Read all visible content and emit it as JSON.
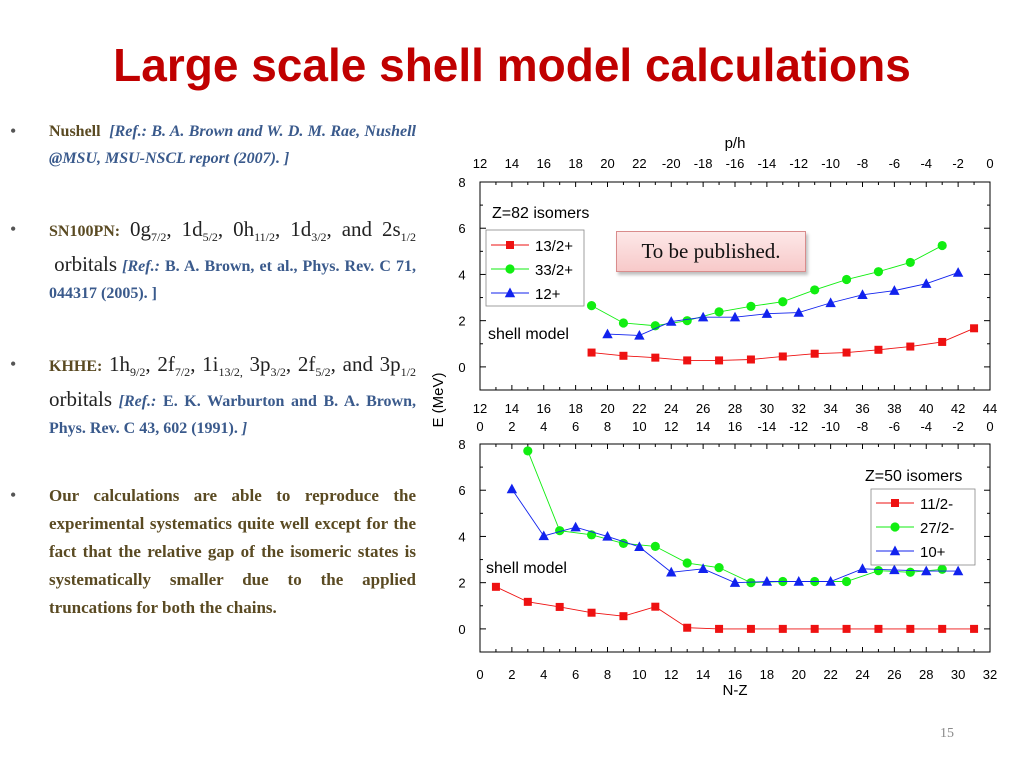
{
  "title": "Large scale shell model calculations",
  "badge": "To be published.",
  "slide_number": "15",
  "bullets": [
    {
      "label": "Nushell",
      "ref": "[Ref.: B. A. Brown and W. D. M. Rae, Nushell @MSU, MSU-NSCL report (2007). ]"
    },
    {
      "label": "SN100PN:",
      "orbitals": [
        {
          "n": "0g",
          "j": "7/2"
        },
        {
          "n": "1d",
          "j": "5/2"
        },
        {
          "n": "0h",
          "j": "11/2"
        },
        {
          "n": "1d",
          "j": "3/2"
        },
        {
          "n": "2s",
          "j": "1/2"
        }
      ],
      "conj": "and",
      "suffix": "orbitals",
      "ref_open": "[Ref.:",
      "ref_body": "B. A. Brown, et al., Phys. Rev. C 71, 044317 (2005). ]"
    },
    {
      "label": "KHHE:",
      "orbitals": [
        {
          "n": "1h",
          "j": "9/2"
        },
        {
          "n": "2f",
          "j": "7/2"
        },
        {
          "n": "1i",
          "j": "13/2,"
        },
        {
          "n": "3p",
          "j": "3/2"
        },
        {
          "n": "2f",
          "j": "5/2"
        },
        {
          "n": "3p",
          "j": "1/2"
        }
      ],
      "conj": "and",
      "suffix": "orbitals",
      "ref_open": "[Ref.:",
      "ref_body": "E. K. Warburton and B. A. Brown, Phys. Rev. C 43, 602 (1991).",
      "ref_close": "]"
    },
    {
      "text": "Our calculations are able to reproduce the experimental systematics quite well except for the fact that the relative gap of the isomeric states is systematically smaller due to the applied truncations for both the chains."
    }
  ],
  "chart_data": [
    {
      "type": "scatter",
      "title": "Z=82 isomers",
      "annotation": "shell model",
      "x_top_label": "p/h",
      "x_top_ticks": [
        "12",
        "14",
        "16",
        "18",
        "20",
        "22",
        "-20",
        "-18",
        "-16",
        "-14",
        "-12",
        "-10",
        "-8",
        "-6",
        "-4",
        "-2",
        "0"
      ],
      "x_bottom_ticks_row1": [
        "12",
        "14",
        "16",
        "18",
        "20",
        "22",
        "24",
        "26",
        "28",
        "30",
        "32",
        "34",
        "36",
        "38",
        "40",
        "42",
        "44"
      ],
      "x_bottom_ticks_row2": [
        "0",
        "2",
        "4",
        "6",
        "8",
        "10",
        "12",
        "14",
        "16",
        "-14",
        "-12",
        "-10",
        "-8",
        "-6",
        "-4",
        "-2",
        "0"
      ],
      "xlim": [
        12,
        44
      ],
      "ylim": [
        -1,
        8
      ],
      "yticks": [
        0,
        2,
        4,
        6,
        8
      ],
      "ylabel": "E (MeV)",
      "legend_position": "left",
      "series": [
        {
          "name": "13/2+",
          "color": "#ee1111",
          "marker": "square",
          "x": [
            19,
            21,
            23,
            25,
            27,
            29,
            31,
            33,
            35,
            37,
            39,
            41,
            43
          ],
          "y": [
            0.62,
            0.48,
            0.4,
            0.28,
            0.28,
            0.32,
            0.45,
            0.57,
            0.62,
            0.74,
            0.88,
            1.08,
            1.67
          ]
        },
        {
          "name": "33/2+",
          "color": "#11ee11",
          "marker": "circle",
          "x": [
            19,
            21,
            23,
            25,
            27,
            29,
            31,
            33,
            35,
            37,
            39,
            41
          ],
          "y": [
            2.65,
            1.9,
            1.78,
            2.0,
            2.38,
            2.62,
            2.82,
            3.33,
            3.78,
            4.12,
            4.52,
            5.25
          ]
        },
        {
          "name": "12+",
          "color": "#1122ee",
          "marker": "triangle",
          "x": [
            20,
            22,
            24,
            26,
            28,
            30,
            32,
            34,
            36,
            38,
            40,
            42
          ],
          "y": [
            1.42,
            1.36,
            1.96,
            2.15,
            2.15,
            2.3,
            2.35,
            2.77,
            3.12,
            3.3,
            3.6,
            4.08
          ]
        }
      ]
    },
    {
      "type": "scatter",
      "title": "Z=50 isomers",
      "annotation": "shell model",
      "xlabel": "N-Z",
      "x_ticks": [
        "0",
        "2",
        "4",
        "6",
        "8",
        "10",
        "12",
        "14",
        "16",
        "18",
        "20",
        "22",
        "24",
        "26",
        "28",
        "30",
        "32"
      ],
      "xlim": [
        0,
        32
      ],
      "ylim": [
        -1,
        8
      ],
      "yticks": [
        0,
        2,
        4,
        6,
        8
      ],
      "ylabel": "E (MeV)",
      "legend_position": "right",
      "series": [
        {
          "name": "11/2-",
          "color": "#ee1111",
          "marker": "square",
          "x": [
            1,
            3,
            5,
            7,
            9,
            11,
            13,
            15,
            17,
            19,
            21,
            23,
            25,
            27,
            29,
            31
          ],
          "y": [
            1.82,
            1.17,
            0.95,
            0.7,
            0.55,
            0.96,
            0.05,
            0,
            0,
            0,
            0,
            0,
            0,
            0,
            0,
            0
          ]
        },
        {
          "name": "27/2-",
          "color": "#11ee11",
          "marker": "circle",
          "x": [
            3,
            5,
            7,
            9,
            11,
            13,
            15,
            17,
            19,
            21,
            23,
            25,
            27,
            29
          ],
          "y": [
            7.7,
            4.25,
            4.07,
            3.7,
            3.57,
            2.85,
            2.65,
            2.0,
            2.05,
            2.05,
            2.05,
            2.52,
            2.45,
            2.58
          ]
        },
        {
          "name": "10+",
          "color": "#1122ee",
          "marker": "triangle",
          "x": [
            2,
            4,
            6,
            8,
            10,
            12,
            14,
            16,
            18,
            20,
            22,
            24,
            26,
            28,
            30
          ],
          "y": [
            6.05,
            4.02,
            4.4,
            4.0,
            3.55,
            2.45,
            2.6,
            2.0,
            2.05,
            2.05,
            2.05,
            2.6,
            2.55,
            2.5,
            2.5
          ]
        }
      ]
    }
  ]
}
